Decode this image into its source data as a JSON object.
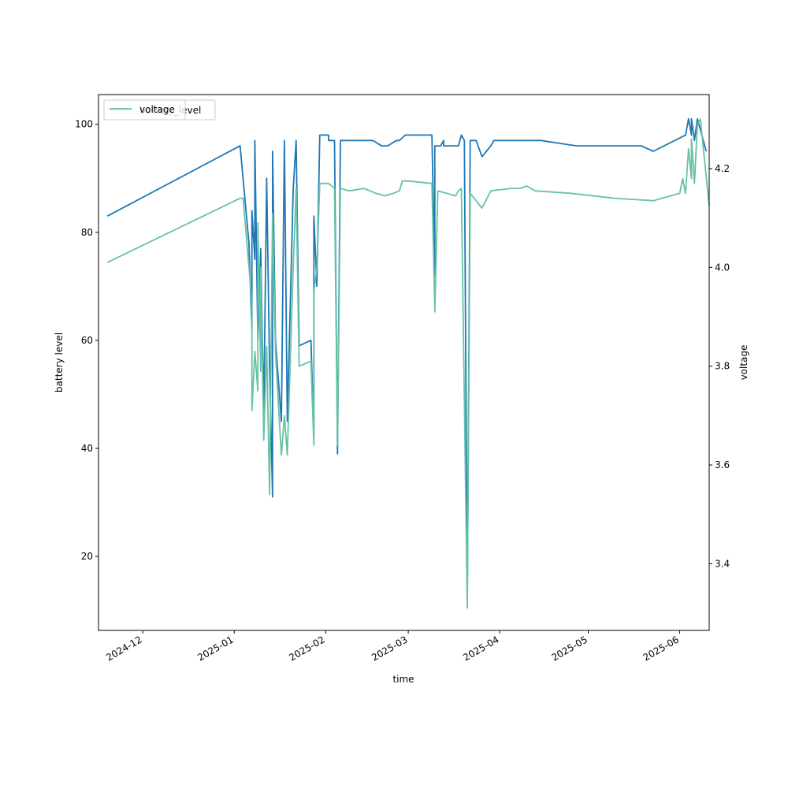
{
  "chart_data": {
    "type": "line",
    "xlabel": "time",
    "ylabel": "battery level",
    "y2label": "voltage",
    "x_ticks": [
      "2024-12",
      "2025-01",
      "2025-02",
      "2025-03",
      "2025-04",
      "2025-05",
      "2025-06"
    ],
    "y_ticks": [
      20,
      40,
      60,
      80,
      100
    ],
    "y2_ticks": [
      "3.4",
      "3.6",
      "3.8",
      "4.0",
      "4.2"
    ],
    "xlim": [
      "2024-11-16",
      "2025-06-11"
    ],
    "ylim": [
      6.3,
      105.5
    ],
    "y2lim": [
      3.265,
      4.35
    ],
    "grid": false,
    "legends": [
      {
        "placement": "top-left",
        "entries": [
          "battery_level"
        ]
      },
      {
        "placement": "top-left",
        "entries": [
          "voltage"
        ]
      }
    ],
    "colors": {
      "battery_level": "#1f77b4",
      "voltage": "#66c2a5"
    },
    "series": [
      {
        "name": "battery_level",
        "axis": "left",
        "points": [
          [
            "2024-11-19",
            83
          ],
          [
            "2025-01-03",
            96
          ],
          [
            "2025-01-06",
            78
          ],
          [
            "2025-01-07",
            62
          ],
          [
            "2025-01-07",
            84
          ],
          [
            "2025-01-08",
            75
          ],
          [
            "2025-01-08",
            97
          ],
          [
            "2025-01-09",
            60
          ],
          [
            "2025-01-10",
            77
          ],
          [
            "2025-01-11",
            46
          ],
          [
            "2025-01-12",
            90
          ],
          [
            "2025-01-13",
            55
          ],
          [
            "2025-01-14",
            31
          ],
          [
            "2025-01-14",
            95
          ],
          [
            "2025-01-15",
            60
          ],
          [
            "2025-01-17",
            45
          ],
          [
            "2025-01-18",
            97
          ],
          [
            "2025-01-19",
            45
          ],
          [
            "2025-01-21",
            88
          ],
          [
            "2025-01-22",
            97
          ],
          [
            "2025-01-23",
            59
          ],
          [
            "2025-01-27",
            60
          ],
          [
            "2025-01-28",
            42
          ],
          [
            "2025-01-28",
            83
          ],
          [
            "2025-01-29",
            70
          ],
          [
            "2025-01-30",
            98
          ],
          [
            "2025-02-02",
            98
          ],
          [
            "2025-02-02",
            97
          ],
          [
            "2025-02-04",
            97
          ],
          [
            "2025-02-05",
            39
          ],
          [
            "2025-02-06",
            97
          ],
          [
            "2025-02-17",
            97
          ],
          [
            "2025-02-20",
            96
          ],
          [
            "2025-02-22",
            96
          ],
          [
            "2025-02-25",
            97
          ],
          [
            "2025-02-26",
            97
          ],
          [
            "2025-02-28",
            98
          ],
          [
            "2025-03-09",
            98
          ],
          [
            "2025-03-10",
            72
          ],
          [
            "2025-03-10",
            96
          ],
          [
            "2025-03-12",
            96
          ],
          [
            "2025-03-13",
            97
          ],
          [
            "2025-03-13",
            96
          ],
          [
            "2025-03-18",
            96
          ],
          [
            "2025-03-19",
            98
          ],
          [
            "2025-03-20",
            97
          ],
          [
            "2025-03-21",
            11
          ],
          [
            "2025-03-22",
            97
          ],
          [
            "2025-03-24",
            97
          ],
          [
            "2025-03-26",
            94
          ],
          [
            "2025-03-29",
            96
          ],
          [
            "2025-03-30",
            97
          ],
          [
            "2025-04-15",
            97
          ],
          [
            "2025-04-27",
            96
          ],
          [
            "2025-05-19",
            96
          ],
          [
            "2025-05-23",
            95
          ],
          [
            "2025-06-03",
            98
          ],
          [
            "2025-06-04",
            101
          ],
          [
            "2025-06-05",
            98
          ],
          [
            "2025-06-05",
            101
          ],
          [
            "2025-06-06",
            97
          ],
          [
            "2025-06-07",
            101
          ],
          [
            "2025-06-10",
            95
          ]
        ]
      },
      {
        "name": "voltage",
        "axis": "right",
        "points": [
          [
            "2024-11-19",
            4.01
          ],
          [
            "2025-01-03",
            4.14
          ],
          [
            "2025-01-04",
            4.14
          ],
          [
            "2025-01-07",
            3.93
          ],
          [
            "2025-01-07",
            3.71
          ],
          [
            "2025-01-08",
            3.83
          ],
          [
            "2025-01-09",
            3.75
          ],
          [
            "2025-01-09",
            4.09
          ],
          [
            "2025-01-10",
            3.79
          ],
          [
            "2025-01-10",
            4.0
          ],
          [
            "2025-01-11",
            3.65
          ],
          [
            "2025-01-12",
            3.84
          ],
          [
            "2025-01-13",
            3.54
          ],
          [
            "2025-01-14",
            4.11
          ],
          [
            "2025-01-15",
            3.83
          ],
          [
            "2025-01-16",
            3.72
          ],
          [
            "2025-01-17",
            3.62
          ],
          [
            "2025-01-18",
            3.7
          ],
          [
            "2025-01-19",
            3.62
          ],
          [
            "2025-01-21",
            4.0
          ],
          [
            "2025-01-22",
            4.16
          ],
          [
            "2025-01-23",
            3.8
          ],
          [
            "2025-01-27",
            3.81
          ],
          [
            "2025-01-28",
            3.64
          ],
          [
            "2025-01-28",
            3.95
          ],
          [
            "2025-01-29",
            4.0
          ],
          [
            "2025-01-30",
            4.17
          ],
          [
            "2025-02-02",
            4.17
          ],
          [
            "2025-02-04",
            4.16
          ],
          [
            "2025-02-05",
            3.64
          ],
          [
            "2025-02-06",
            4.16
          ],
          [
            "2025-02-09",
            4.155
          ],
          [
            "2025-02-14",
            4.16
          ],
          [
            "2025-02-18",
            4.15
          ],
          [
            "2025-02-21",
            4.145
          ],
          [
            "2025-02-24",
            4.15
          ],
          [
            "2025-02-26",
            4.155
          ],
          [
            "2025-02-27",
            4.175
          ],
          [
            "2025-03-01",
            4.175
          ],
          [
            "2025-03-09",
            4.17
          ],
          [
            "2025-03-10",
            3.91
          ],
          [
            "2025-03-11",
            4.155
          ],
          [
            "2025-03-14",
            4.15
          ],
          [
            "2025-03-17",
            4.145
          ],
          [
            "2025-03-18",
            4.155
          ],
          [
            "2025-03-19",
            4.16
          ],
          [
            "2025-03-21",
            3.31
          ],
          [
            "2025-03-22",
            4.15
          ],
          [
            "2025-03-26",
            4.12
          ],
          [
            "2025-03-29",
            4.155
          ],
          [
            "2025-04-05",
            4.16
          ],
          [
            "2025-04-08",
            4.16
          ],
          [
            "2025-04-10",
            4.165
          ],
          [
            "2025-04-13",
            4.155
          ],
          [
            "2025-04-25",
            4.15
          ],
          [
            "2025-05-10",
            4.14
          ],
          [
            "2025-05-23",
            4.135
          ],
          [
            "2025-06-01",
            4.15
          ],
          [
            "2025-06-02",
            4.18
          ],
          [
            "2025-06-03",
            4.15
          ],
          [
            "2025-06-04",
            4.24
          ],
          [
            "2025-06-05",
            4.18
          ],
          [
            "2025-06-05",
            4.26
          ],
          [
            "2025-06-06",
            4.17
          ],
          [
            "2025-06-07",
            4.29
          ],
          [
            "2025-06-08",
            4.3
          ],
          [
            "2025-06-11",
            4.125
          ]
        ]
      }
    ]
  }
}
